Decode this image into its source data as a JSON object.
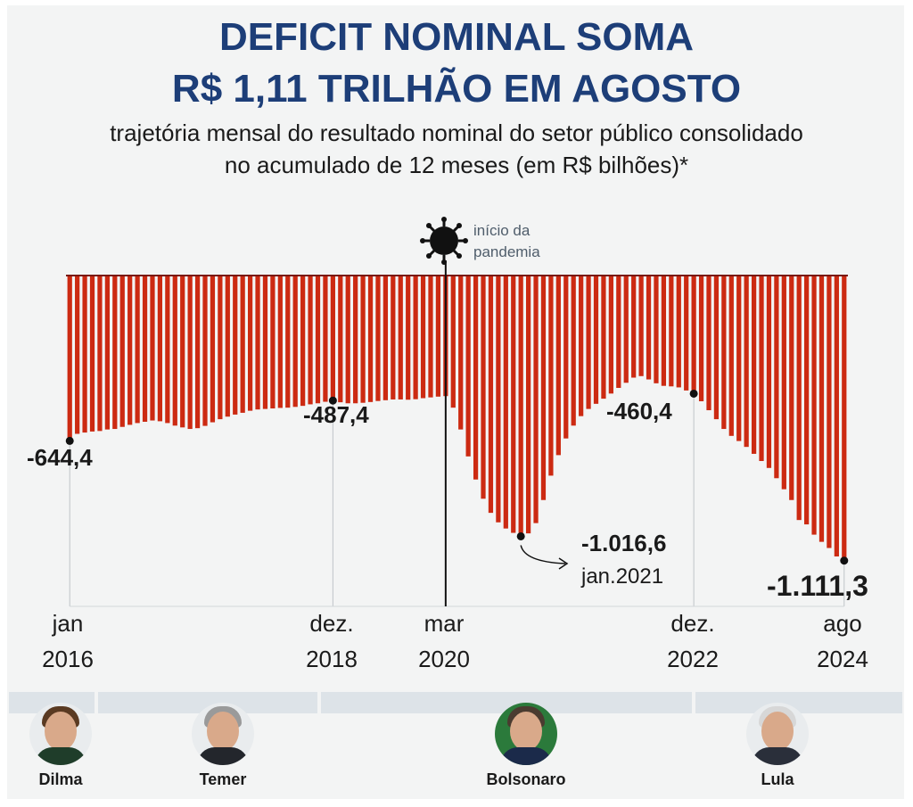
{
  "title_line1": "DEFICIT NOMINAL SOMA",
  "title_line2": "R$ 1,11 TRILHÃO EM AGOSTO",
  "subtitle_line1": "trajetória mensal do resultado nominal do setor público consolidado",
  "subtitle_line2": "no acumulado de 12 meses (em R$ bilhões)*",
  "pandemic_label_line1": "início da",
  "pandemic_label_line2": "pandemia",
  "presidents": [
    "Dilma",
    "Temer",
    "Bolsonaro",
    "Lula"
  ],
  "colors": {
    "bar": "#cc2a12",
    "title": "#1d3e78",
    "band": "#dde3e8"
  },
  "chart_data": {
    "type": "bar",
    "title": "DEFICIT NOMINAL SOMA R$ 1,11 TRILHÃO EM AGOSTO",
    "ylabel": "",
    "xlabel": "",
    "ylim": [
      -1150,
      0
    ],
    "start": "jan 2016",
    "end": "ago 2024",
    "tick_labels": [
      {
        "line1": "jan",
        "line2": "2016",
        "index": 0
      },
      {
        "line1": "dez.",
        "line2": "2018",
        "index": 35
      },
      {
        "line1": "mar",
        "line2": "2020",
        "index": 50
      },
      {
        "line1": "dez.",
        "line2": "2022",
        "index": 83
      },
      {
        "line1": "ago",
        "line2": "2024",
        "index": 103
      }
    ],
    "annotations": [
      {
        "index": 0,
        "label": "-644,4"
      },
      {
        "index": 35,
        "label": "-487,4"
      },
      {
        "index": 60,
        "label": "-1.016,6",
        "sub": "jan.2021"
      },
      {
        "index": 83,
        "label": "-460,4"
      },
      {
        "index": 103,
        "label": "-1.111,3"
      }
    ],
    "values": [
      -644.4,
      -617,
      -612,
      -608,
      -606,
      -600,
      -598,
      -590,
      -582,
      -575,
      -570,
      -565,
      -568,
      -575,
      -585,
      -592,
      -598,
      -595,
      -586,
      -572,
      -560,
      -550,
      -542,
      -535,
      -527,
      -522,
      -520,
      -518,
      -516,
      -515,
      -512,
      -508,
      -502,
      -498,
      -492,
      -487.4,
      -494,
      -498,
      -498,
      -496,
      -493,
      -489,
      -486,
      -483,
      -483,
      -484,
      -482,
      -478,
      -475,
      -472,
      -470,
      -515,
      -600,
      -705,
      -795,
      -870,
      -925,
      -962,
      -986,
      -1003,
      -1016.6,
      -1005,
      -965,
      -875,
      -780,
      -700,
      -635,
      -585,
      -548,
      -520,
      -500,
      -480,
      -460,
      -438,
      -418,
      -398,
      -392,
      -405,
      -420,
      -430,
      -432,
      -436,
      -448,
      -460.4,
      -490,
      -525,
      -560,
      -598,
      -625,
      -645,
      -668,
      -695,
      -723,
      -750,
      -790,
      -833,
      -875,
      -953,
      -970,
      -1010,
      -1038,
      -1062,
      -1095,
      -1111.3
    ]
  }
}
